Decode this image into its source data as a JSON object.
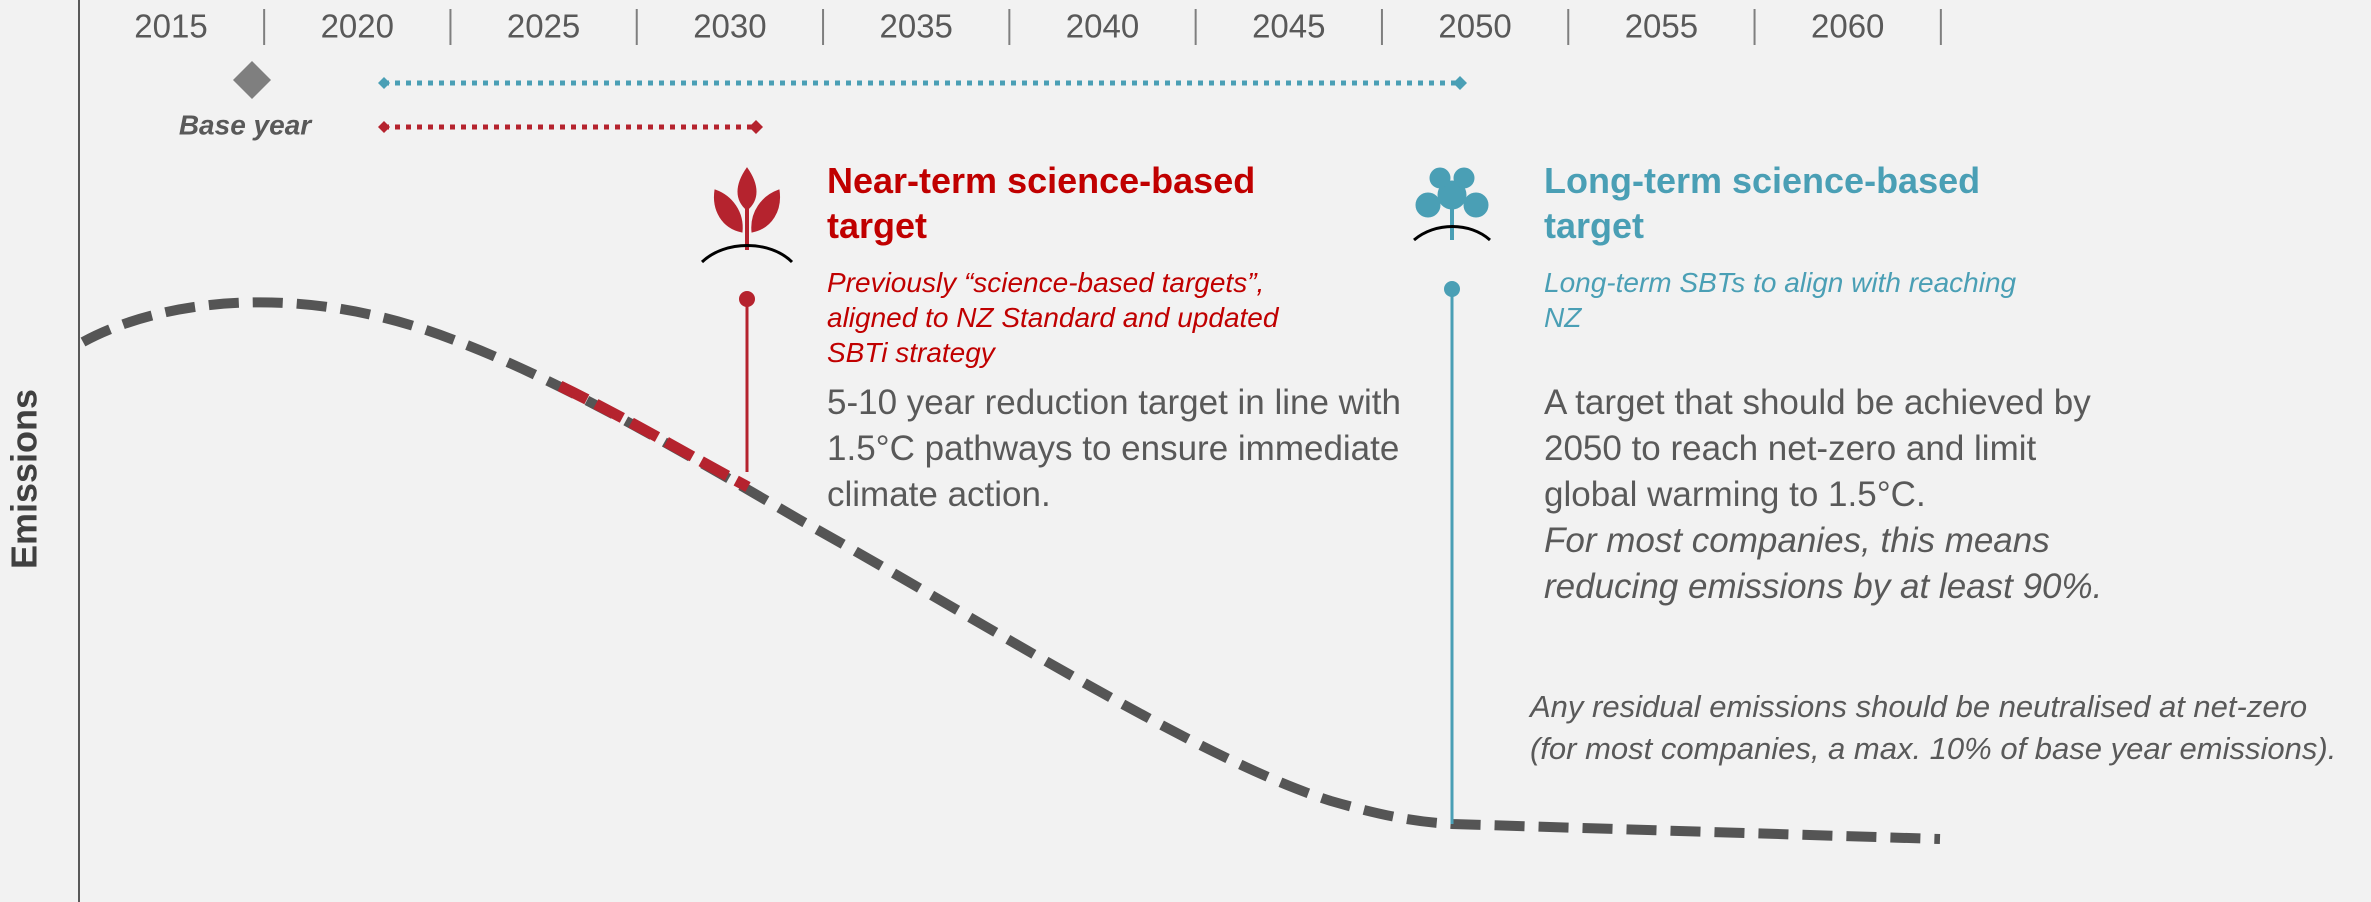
{
  "axis": {
    "label": "Emissions",
    "years": [
      "2015",
      "2020",
      "2025",
      "2030",
      "2035",
      "2040",
      "2045",
      "2050",
      "2055",
      "2060"
    ]
  },
  "base_year": "Base year",
  "near_term": {
    "title": "Near-term science-based target",
    "subtitle": "Previously “science-based targets”, aligned to NZ Standard and updated SBTi strategy",
    "description": "5-10 year reduction target in line with 1.5°C pathways to ensure immediate climate action."
  },
  "long_term": {
    "title": "Long-term science-based target",
    "subtitle": "Long-term SBTs to align with reaching NZ",
    "description": "A target that should be achieved by 2050 to reach net-zero and limit global warming to 1.5°C.",
    "note": "For most companies, this means reducing emissions by at least 90%."
  },
  "residual": "Any residual emissions should be neutralised at net-zero (for most companies, a max. 10% of base year emissions)."
}
